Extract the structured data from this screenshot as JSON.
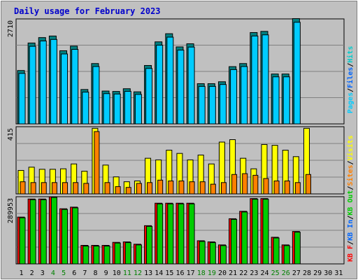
{
  "chart_data": [
    {
      "type": "bar",
      "title": "Daily usage for February 2023",
      "categories": [
        "1",
        "2",
        "3",
        "4",
        "5",
        "6",
        "7",
        "8",
        "9",
        "10",
        "11",
        "12",
        "13",
        "14",
        "15",
        "16",
        "17",
        "18",
        "19",
        "20",
        "21",
        "22",
        "23",
        "24",
        "25",
        "26",
        "27",
        "28",
        "29",
        "30",
        "31"
      ],
      "weekend_days": [
        "4",
        "5",
        "11",
        "12",
        "18",
        "19",
        "25",
        "26"
      ],
      "ytick": "2710",
      "ylim": [
        0,
        2710
      ],
      "series": [
        {
          "name": "Hits",
          "color": "#00cccc",
          "values": [
            1360,
            2070,
            2210,
            2250,
            1870,
            1990,
            870,
            1540,
            830,
            820,
            890,
            810,
            1490,
            2100,
            2310,
            1970,
            2050,
            1020,
            1020,
            1070,
            1460,
            1540,
            2340,
            2370,
            1270,
            1270,
            2700,
            null,
            null,
            null,
            null
          ]
        },
        {
          "name": "Files",
          "color": "#0066ff",
          "values": [
            null,
            null,
            null,
            null,
            null,
            null,
            null,
            null,
            null,
            null,
            null,
            null,
            null,
            null,
            null,
            null,
            null,
            null,
            null,
            null,
            null,
            null,
            null,
            null,
            null,
            null,
            null,
            null,
            null,
            null,
            null
          ]
        },
        {
          "name": "Pages",
          "color": "#00ccff",
          "values": [
            null,
            null,
            null,
            null,
            null,
            null,
            null,
            null,
            null,
            null,
            null,
            null,
            null,
            null,
            null,
            null,
            null,
            null,
            null,
            null,
            null,
            null,
            null,
            null,
            null,
            null,
            null,
            null,
            null,
            null,
            null
          ]
        }
      ],
      "legend": [
        "Pages",
        "/",
        "Files",
        "/",
        "Hits"
      ]
    },
    {
      "type": "bar",
      "ytick": "415",
      "ylim": [
        0,
        415
      ],
      "series": [
        {
          "name": "Visits",
          "color": "#ffff00",
          "values": [
            145,
            165,
            152,
            152,
            155,
            185,
            140,
            405,
            178,
            105,
            75,
            80,
            220,
            210,
            270,
            250,
            210,
            240,
            185,
            320,
            335,
            220,
            155,
            305,
            300,
            270,
            230,
            405,
            null,
            null,
            null
          ]
        },
        {
          "name": "Sites",
          "color": "#ff8000",
          "values": [
            75,
            70,
            70,
            70,
            70,
            70,
            65,
            385,
            70,
            45,
            40,
            65,
            70,
            85,
            80,
            80,
            75,
            75,
            60,
            70,
            120,
            125,
            115,
            95,
            80,
            80,
            70,
            120,
            null,
            null,
            null
          ]
        }
      ],
      "legend": [
        "Visits",
        "/",
        "Sites",
        "/",
        "KB Out",
        "/",
        "KB In",
        "/",
        "KB F"
      ]
    },
    {
      "type": "bar",
      "ytick": "289953",
      "ylim": [
        0,
        289953
      ],
      "series": [
        {
          "name": "KB F",
          "color": "#ff0000",
          "values": [
            202000,
            280000,
            280000,
            289953,
            238000,
            245000,
            80000,
            80000,
            80000,
            93000,
            95000,
            85000,
            165000,
            262000,
            262000,
            262000,
            262000,
            100000,
            95000,
            82000,
            195000,
            227000,
            282000,
            282000,
            115000,
            82000,
            140000,
            null,
            null,
            null,
            null
          ]
        },
        {
          "name": "KB In",
          "color": "#0066ff",
          "values": [
            null,
            null,
            null,
            null,
            null,
            null,
            null,
            null,
            null,
            null,
            null,
            null,
            null,
            null,
            null,
            null,
            null,
            null,
            null,
            null,
            null,
            null,
            null,
            null,
            null,
            null,
            null,
            null,
            null,
            null,
            null
          ]
        },
        {
          "name": "KB Out",
          "color": "#00cc00",
          "values": [
            202000,
            280000,
            280000,
            289953,
            238000,
            245000,
            80000,
            80000,
            80000,
            93000,
            95000,
            85000,
            165000,
            262000,
            262000,
            262000,
            262000,
            100000,
            95000,
            82000,
            195000,
            227000,
            282000,
            282000,
            115000,
            82000,
            140000,
            null,
            null,
            null,
            null
          ]
        }
      ]
    }
  ]
}
